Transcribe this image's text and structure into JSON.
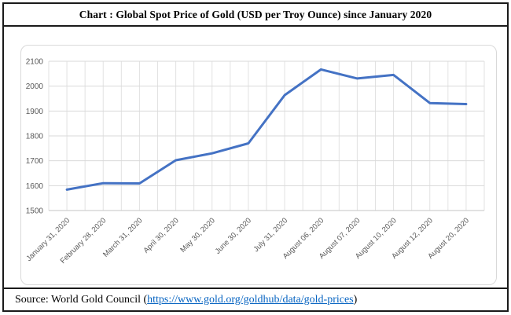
{
  "title": "Chart : Global Spot Price of Gold (USD per Troy Ounce) since January 2020",
  "source": {
    "prefix": "Source: World Gold Council (",
    "link_text": "https://www.gold.org/goldhub/data/gold-prices",
    "suffix": ")"
  },
  "colors": {
    "line": "#4472C4",
    "h_gridline": "#D9D9D9",
    "v_gridline": "#E2E2E2",
    "axis_line": "#C6C6C6",
    "axis_label": "#595959",
    "link": "#0563C1",
    "table_border": "#1A1A1A",
    "chart_frame_border": "#D9D9D9"
  },
  "chart_data": {
    "type": "line",
    "title": "Chart : Global Spot Price of Gold (USD per Troy Ounce) since January 2020",
    "categories": [
      "January 31, 2020",
      "February 28, 2020",
      "March 31, 2020",
      "April 30, 2020",
      "May 30, 2020",
      "June 30, 2020",
      "July 31, 2020",
      "August 06, 2020",
      "August 07, 2020",
      "August 10, 2020",
      "August 12, 2020",
      "August 20, 2020"
    ],
    "series": [
      {
        "name": "Global spot price of gold (USD per troy ounce)",
        "values": [
          1584,
          1610,
          1609,
          1702,
          1730,
          1770,
          1964,
          2067,
          2031,
          2045,
          1932,
          1928
        ]
      }
    ],
    "xlabel": "",
    "ylabel": "",
    "ylim": [
      1500,
      2100
    ],
    "y_ticks": [
      1500,
      1600,
      1700,
      1800,
      1900,
      2000,
      2100
    ],
    "grid": "horizontal-and-vertical",
    "legend": "none",
    "x_label_rotation_deg": 45
  }
}
